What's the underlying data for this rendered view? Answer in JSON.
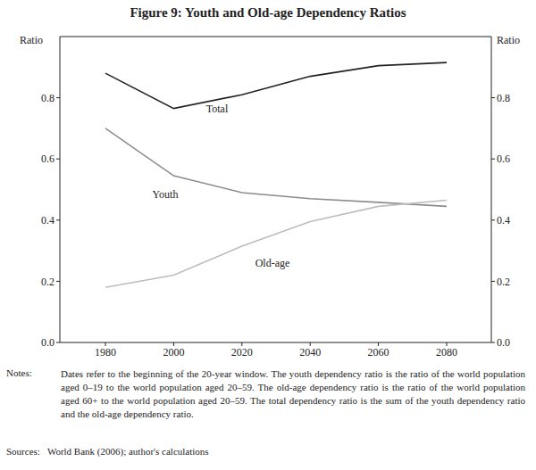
{
  "chart_data": {
    "type": "line",
    "title": "Figure 9: Youth and Old-age Dependency Ratios",
    "y_label": "Ratio",
    "y2_label": "Ratio",
    "x": [
      1980,
      2000,
      2020,
      2040,
      2060,
      2080
    ],
    "series": [
      {
        "name": "Total",
        "color": "#222222",
        "values": [
          0.88,
          0.765,
          0.81,
          0.87,
          0.905,
          0.915
        ]
      },
      {
        "name": "Youth",
        "color": "#8c8c8c",
        "values": [
          0.7,
          0.545,
          0.49,
          0.47,
          0.458,
          0.445
        ]
      },
      {
        "name": "Old-age",
        "color": "#bdbdbd",
        "values": [
          0.18,
          0.22,
          0.315,
          0.395,
          0.445,
          0.465
        ]
      }
    ],
    "ylim": [
      0,
      1
    ],
    "yticks": [
      {
        "value": 0,
        "label": "0.0"
      },
      0.2,
      0.4,
      0.6,
      0.8
    ],
    "y2lim": [
      0,
      1
    ],
    "y2ticks": [
      {
        "value": 0,
        "label": "0.0"
      },
      0.2,
      0.4,
      0.6,
      0.8
    ],
    "grid": false,
    "notes_label": "Notes:",
    "notes": "Dates refer to the beginning of the 20-year window. The youth dependency ratio is the ratio of the world population aged 0–19 to the world population aged 20–59. The old-age dependency ratio is the ratio of the world population aged 60+ to the world population aged 20–59. The total dependency ratio is the sum of the youth dependency ratio and the old-age dependency ratio.",
    "sources_label": "Sources:",
    "sources": "World Bank (2006); author's calculations"
  }
}
